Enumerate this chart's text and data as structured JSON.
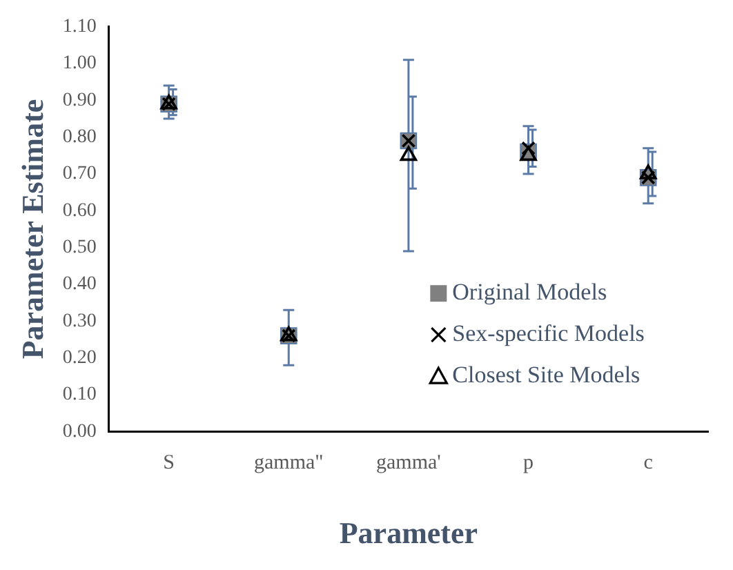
{
  "chart_data": {
    "type": "scatter",
    "xlabel": "Parameter",
    "ylabel": "Parameter Estimate",
    "categories": [
      "S",
      "gamma\"",
      "gamma'",
      "p",
      "c"
    ],
    "ylim": [
      0,
      1.1
    ],
    "yticks": [
      {
        "value": 0,
        "label": "0.00"
      },
      {
        "value": 0.1,
        "label": "0.10"
      },
      {
        "value": 0.2,
        "label": "0.20"
      },
      {
        "value": 0.3,
        "label": "0.30"
      },
      {
        "value": 0.4,
        "label": "0.40"
      },
      {
        "value": 0.5,
        "label": "0.50"
      },
      {
        "value": 0.6,
        "label": "0.60"
      },
      {
        "value": 0.7,
        "label": "0.70"
      },
      {
        "value": 0.8,
        "label": "0.80"
      },
      {
        "value": 0.9,
        "label": "0.90"
      },
      {
        "value": 1,
        "label": "1.00"
      },
      {
        "value": 1.1,
        "label": "1.10"
      }
    ],
    "grid": false,
    "legend": "bottom right",
    "series": [
      {
        "name": "Original Models",
        "color": "#808080",
        "marker": "square",
        "values": [
          0.89,
          0.26,
          0.79,
          0.76,
          0.69
        ],
        "errors": [
          [
            0.85,
            0.94
          ],
          [
            0.18,
            0.33
          ],
          [
            0.49,
            1.01
          ],
          [
            0.7,
            0.83
          ],
          [
            0.62,
            0.77
          ]
        ]
      },
      {
        "name": "Sex-specific Models",
        "color": "#000000",
        "marker": "cross",
        "values": [
          0.89,
          0.26,
          0.79,
          0.77,
          0.69
        ],
        "errors": [
          [
            0.86,
            0.93
          ],
          null,
          [
            0.66,
            0.91
          ],
          [
            0.72,
            0.82
          ],
          [
            0.64,
            0.76
          ]
        ]
      },
      {
        "name": "Closest Site Models",
        "color": "#000000",
        "marker": "triangle",
        "values": [
          0.89,
          0.26,
          0.75,
          0.75,
          0.7
        ]
      }
    ]
  }
}
